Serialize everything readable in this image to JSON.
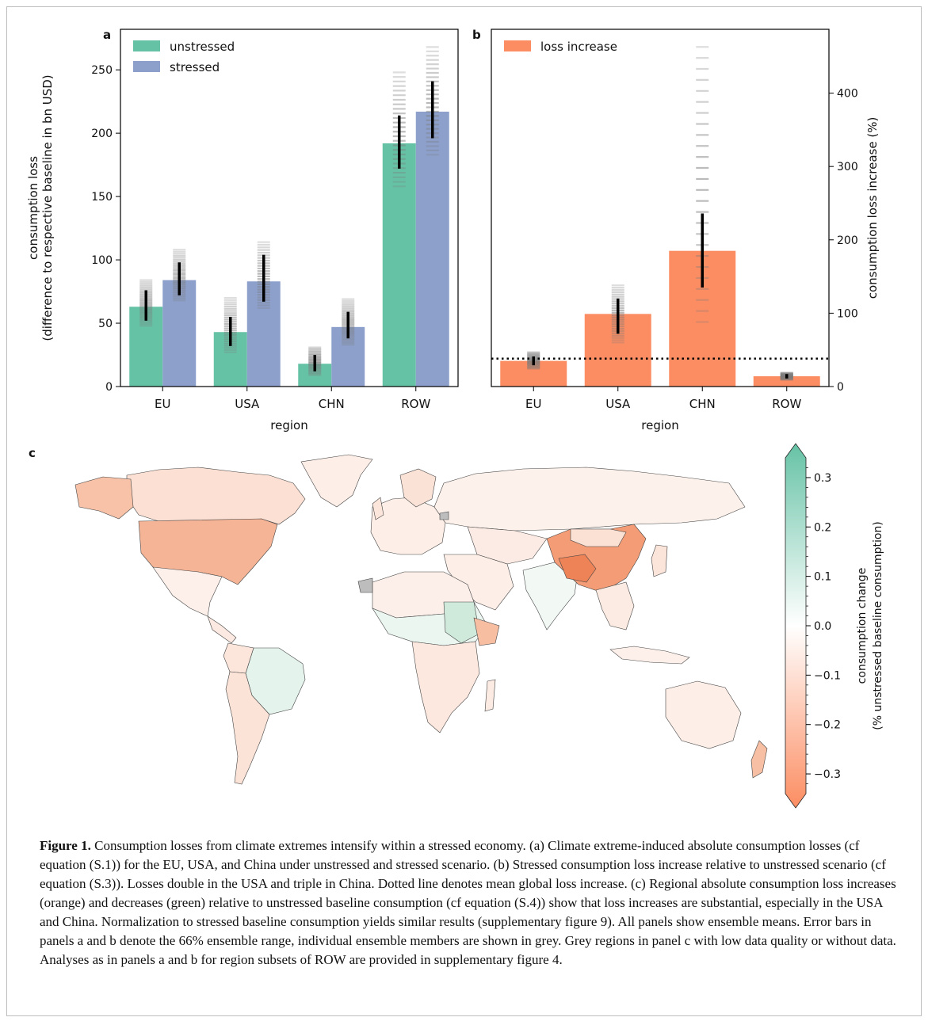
{
  "panels": {
    "a": "a",
    "b": "b",
    "c": "c"
  },
  "chart_data": [
    {
      "panel": "a",
      "type": "bar",
      "categories": [
        "EU",
        "USA",
        "CHN",
        "ROW"
      ],
      "series": [
        {
          "name": "unstressed",
          "color": "#66c2a5",
          "values": [
            63,
            43,
            18,
            192
          ],
          "err_low": [
            52,
            32,
            12,
            172
          ],
          "err_high": [
            76,
            55,
            25,
            214
          ],
          "members": [
            [
              48,
              84
            ],
            [
              27,
              70
            ],
            [
              9,
              31
            ],
            [
              158,
              248
            ]
          ]
        },
        {
          "name": "stressed",
          "color": "#8da0cb",
          "values": [
            84,
            83,
            47,
            217
          ],
          "err_low": [
            72,
            67,
            38,
            196
          ],
          "err_high": [
            98,
            104,
            59,
            241
          ],
          "members": [
            [
              68,
              108
            ],
            [
              62,
              114
            ],
            [
              33,
              69
            ],
            [
              183,
              268
            ]
          ]
        }
      ],
      "xlabel": "region",
      "ylabel": [
        "consumption loss",
        "(difference to respective baseline in bn USD)"
      ],
      "ylim": [
        0,
        282
      ],
      "yticks": [
        0,
        50,
        100,
        150,
        200,
        250
      ],
      "legend": "top-left"
    },
    {
      "panel": "b",
      "type": "bar",
      "categories": [
        "EU",
        "USA",
        "CHN",
        "ROW"
      ],
      "series": [
        {
          "name": "loss increase",
          "color": "#fc8d62",
          "values": [
            35,
            99,
            185,
            14
          ],
          "err_low": [
            29,
            72,
            135,
            11
          ],
          "err_high": [
            41,
            120,
            236,
            17
          ],
          "members": [
            [
              24,
              47
            ],
            [
              60,
              138
            ],
            [
              88,
              463
            ],
            [
              9,
              19
            ]
          ]
        }
      ],
      "mean_global_increase": 38,
      "xlabel": "region",
      "ylabel": "consumption loss increase (%)",
      "ylim": [
        0,
        487
      ],
      "yticks": [
        0,
        100,
        200,
        300,
        400
      ],
      "y_axis_side": "right",
      "legend": "top-left"
    },
    {
      "panel": "c",
      "type": "heatmap",
      "kind": "world choropleth",
      "colorbar": {
        "label": [
          "consumption change",
          "(% unstressed baseline consumption)"
        ],
        "range": [
          -0.34,
          0.34
        ],
        "ticks": [
          0.3,
          0.2,
          0.1,
          0.0,
          -0.1,
          -0.2,
          -0.3
        ],
        "tick_labels": [
          "0.3",
          "0.2",
          "0.1",
          "0.0",
          "−0.1",
          "−0.2",
          "−0.3"
        ],
        "extend": "both",
        "colors": {
          "positive": "#66c2a5",
          "zero": "#ffffff",
          "negative": "#fc8d62",
          "no_data": "#bdbdbd"
        }
      }
    }
  ],
  "caption": {
    "label": "Figure 1.",
    "text": "Consumption losses from climate extremes intensify within a stressed economy. (a) Climate extreme-induced absolute consumption losses (cf equation (S.1)) for the EU, USA, and China under unstressed and stressed scenario. (b) Stressed consumption loss increase relative to unstressed scenario (cf equation (S.3)). Losses double in the USA and triple in China. Dotted line denotes mean global loss increase. (c) Regional absolute consumption loss increases (orange) and decreases (green) relative to unstressed baseline consumption (cf equation (S.4)) show that loss increases are substantial, especially in the USA and China. Normalization to stressed baseline consumption yields similar results (supplementary figure 9). All panels show ensemble means. Error bars in panels a and b denote the 66% ensemble range, individual ensemble members are shown in grey. Grey regions in panel c with low data quality or without data. Analyses as in panels a and b for region subsets of ROW are provided in supplementary figure 4."
  }
}
